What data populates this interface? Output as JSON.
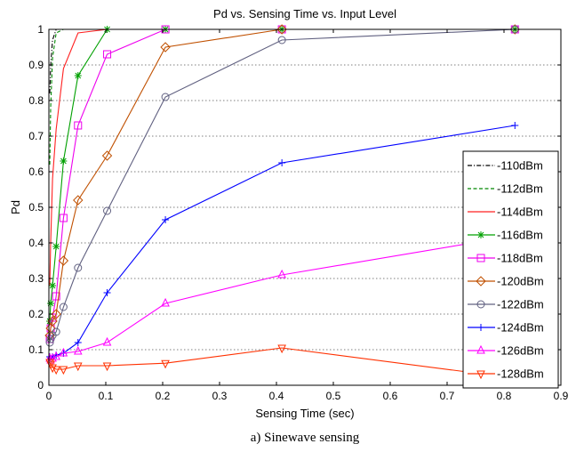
{
  "chart_data": {
    "type": "line",
    "title": "Pd vs. Sensing Time vs. Input Level",
    "xlabel": "Sensing Time (sec)",
    "ylabel": "Pd",
    "xlim": [
      0,
      0.9
    ],
    "ylim": [
      0,
      1
    ],
    "xticks": [
      "0",
      "0.1",
      "0.2",
      "0.3",
      "0.4",
      "0.5",
      "0.6",
      "0.7",
      "0.8",
      "0.9"
    ],
    "yticks": [
      "0",
      "0.1",
      "0.2",
      "0.3",
      "0.4",
      "0.5",
      "0.6",
      "0.7",
      "0.8",
      "0.9",
      "1"
    ],
    "grid": "horizontal-dotted",
    "legend_position": "right",
    "caption": "a) Sinewave sensing",
    "series": [
      {
        "name": "-110dBm",
        "color": "#000000",
        "dash": "dashdot",
        "marker": "none",
        "x": [
          0.0016,
          0.0032,
          0.0064,
          0.0128,
          0.0256,
          0.0512,
          0.1024,
          0.2048,
          0.4096,
          0.8192
        ],
        "y": [
          0.82,
          0.9,
          0.97,
          1.0,
          1.0,
          1.0,
          1.0,
          1.0,
          1.0,
          1.0
        ]
      },
      {
        "name": "-112dBm",
        "color": "#008800",
        "dash": "dash",
        "marker": "none",
        "x": [
          0.0016,
          0.0032,
          0.0064,
          0.0128,
          0.0256,
          0.0512,
          0.1024,
          0.2048,
          0.4096,
          0.8192
        ],
        "y": [
          0.62,
          0.78,
          0.92,
          0.99,
          1.0,
          1.0,
          1.0,
          1.0,
          1.0,
          1.0
        ]
      },
      {
        "name": "-114dBm",
        "color": "#ff2020",
        "dash": "solid",
        "marker": "none",
        "x": [
          0.0016,
          0.0032,
          0.0064,
          0.0128,
          0.0256,
          0.0512,
          0.1024,
          0.2048,
          0.4096,
          0.8192
        ],
        "y": [
          0.28,
          0.4,
          0.58,
          0.72,
          0.89,
          0.99,
          1.0,
          1.0,
          1.0,
          1.0
        ]
      },
      {
        "name": "-116dBm",
        "color": "#00a000",
        "dash": "solid",
        "marker": "star",
        "x": [
          0.0016,
          0.0032,
          0.0064,
          0.0128,
          0.0256,
          0.0512,
          0.1024,
          0.2048,
          0.4096,
          0.8192
        ],
        "y": [
          0.18,
          0.23,
          0.28,
          0.39,
          0.63,
          0.87,
          1.0,
          1.0,
          1.0,
          1.0
        ]
      },
      {
        "name": "-118dBm",
        "color": "#ee00ee",
        "dash": "solid",
        "marker": "square",
        "x": [
          0.0016,
          0.0032,
          0.0064,
          0.0128,
          0.0256,
          0.0512,
          0.1024,
          0.2048,
          0.4096,
          0.8192
        ],
        "y": [
          0.13,
          0.16,
          0.19,
          0.25,
          0.47,
          0.73,
          0.93,
          1.0,
          1.0,
          1.0
        ]
      },
      {
        "name": "-120dBm",
        "color": "#c05000",
        "dash": "solid",
        "marker": "diamond",
        "x": [
          0.0016,
          0.0032,
          0.0064,
          0.0128,
          0.0256,
          0.0512,
          0.1024,
          0.2048,
          0.4096,
          0.8192
        ],
        "y": [
          0.14,
          0.16,
          0.18,
          0.2,
          0.35,
          0.52,
          0.645,
          0.95,
          1.0,
          1.0
        ]
      },
      {
        "name": "-122dBm",
        "color": "#606080",
        "dash": "solid",
        "marker": "circle",
        "x": [
          0.0016,
          0.0032,
          0.0064,
          0.0128,
          0.0256,
          0.0512,
          0.1024,
          0.2048,
          0.4096,
          0.8192
        ],
        "y": [
          0.12,
          0.13,
          0.14,
          0.15,
          0.22,
          0.33,
          0.49,
          0.81,
          0.97,
          1.0
        ]
      },
      {
        "name": "-124dBm",
        "color": "#0000ff",
        "dash": "solid",
        "marker": "plus",
        "x": [
          0.0016,
          0.0032,
          0.0064,
          0.0128,
          0.0256,
          0.0512,
          0.1024,
          0.2048,
          0.4096,
          0.8192
        ],
        "y": [
          0.08,
          0.075,
          0.08,
          0.085,
          0.09,
          0.12,
          0.26,
          0.465,
          0.625,
          0.73
        ]
      },
      {
        "name": "-126dBm",
        "color": "#ff00ff",
        "dash": "solid",
        "marker": "triangle-up",
        "x": [
          0.0016,
          0.0032,
          0.0064,
          0.0128,
          0.0256,
          0.0512,
          0.1024,
          0.2048,
          0.4096,
          0.8192
        ],
        "y": [
          0.075,
          0.07,
          0.075,
          0.08,
          0.09,
          0.095,
          0.12,
          0.23,
          0.31,
          0.42
        ]
      },
      {
        "name": "-128dBm",
        "color": "#ff3000",
        "dash": "solid",
        "marker": "triangle-down",
        "x": [
          0.0016,
          0.0032,
          0.0064,
          0.0128,
          0.0256,
          0.0512,
          0.1024,
          0.2048,
          0.4096,
          0.8192
        ],
        "y": [
          0.065,
          0.06,
          0.05,
          0.045,
          0.045,
          0.055,
          0.055,
          0.062,
          0.105,
          0.02
        ]
      }
    ]
  }
}
